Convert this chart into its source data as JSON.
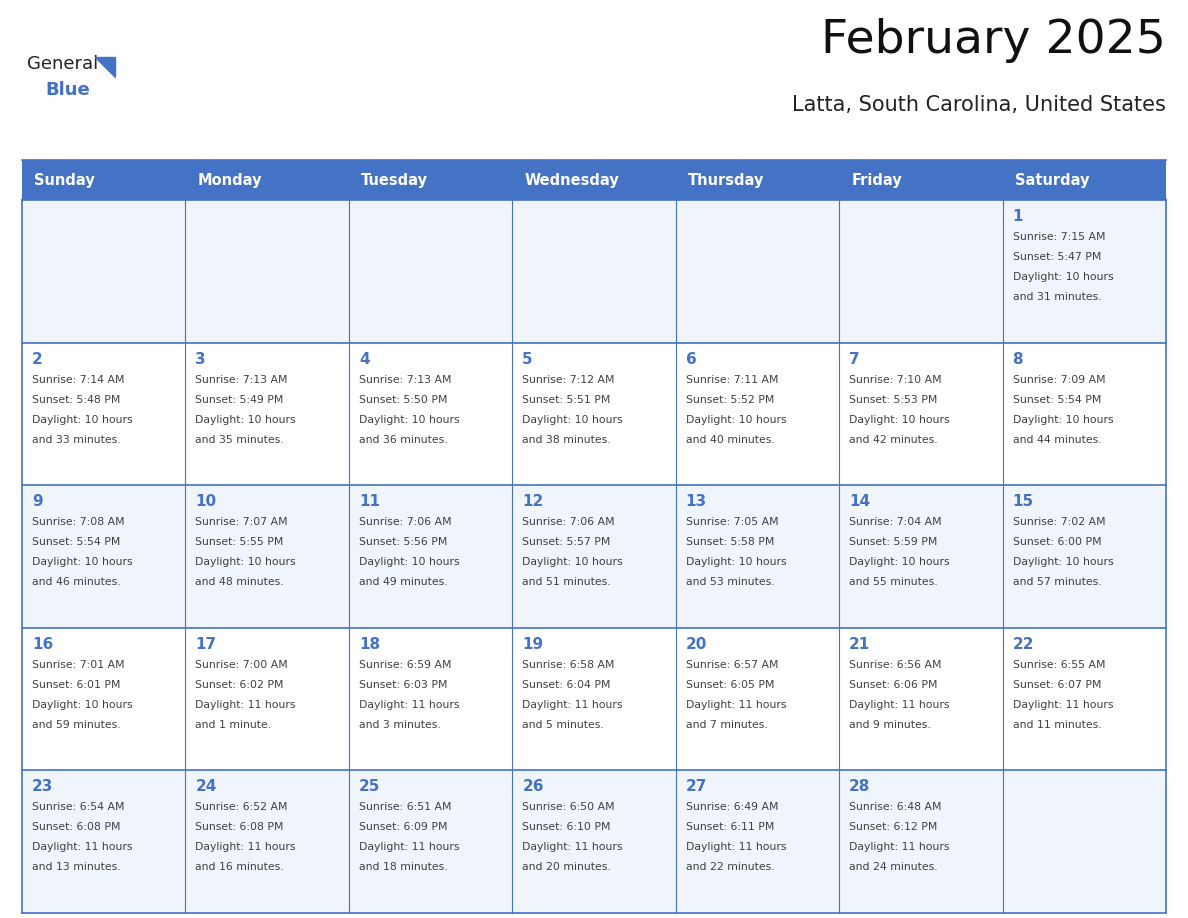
{
  "title": "February 2025",
  "subtitle": "Latta, South Carolina, United States",
  "header_bg_color": "#4472C4",
  "header_text_color": "#FFFFFF",
  "cell_bg_color_odd": "#F0F4FB",
  "cell_bg_color_even": "#FFFFFF",
  "cell_border_color": "#4472C4",
  "day_number_color": "#4472C4",
  "text_color": "#404040",
  "days_of_week": [
    "Sunday",
    "Monday",
    "Tuesday",
    "Wednesday",
    "Thursday",
    "Friday",
    "Saturday"
  ],
  "logo_text1": "General",
  "logo_text2": "Blue",
  "logo_color1": "#222222",
  "logo_color2": "#4472C4",
  "calendar_data": [
    [
      {
        "day": null,
        "sunrise": null,
        "sunset": null,
        "daylight": null
      },
      {
        "day": null,
        "sunrise": null,
        "sunset": null,
        "daylight": null
      },
      {
        "day": null,
        "sunrise": null,
        "sunset": null,
        "daylight": null
      },
      {
        "day": null,
        "sunrise": null,
        "sunset": null,
        "daylight": null
      },
      {
        "day": null,
        "sunrise": null,
        "sunset": null,
        "daylight": null
      },
      {
        "day": null,
        "sunrise": null,
        "sunset": null,
        "daylight": null
      },
      {
        "day": 1,
        "sunrise": "7:15 AM",
        "sunset": "5:47 PM",
        "daylight": "10 hours\nand 31 minutes."
      }
    ],
    [
      {
        "day": 2,
        "sunrise": "7:14 AM",
        "sunset": "5:48 PM",
        "daylight": "10 hours\nand 33 minutes."
      },
      {
        "day": 3,
        "sunrise": "7:13 AM",
        "sunset": "5:49 PM",
        "daylight": "10 hours\nand 35 minutes."
      },
      {
        "day": 4,
        "sunrise": "7:13 AM",
        "sunset": "5:50 PM",
        "daylight": "10 hours\nand 36 minutes."
      },
      {
        "day": 5,
        "sunrise": "7:12 AM",
        "sunset": "5:51 PM",
        "daylight": "10 hours\nand 38 minutes."
      },
      {
        "day": 6,
        "sunrise": "7:11 AM",
        "sunset": "5:52 PM",
        "daylight": "10 hours\nand 40 minutes."
      },
      {
        "day": 7,
        "sunrise": "7:10 AM",
        "sunset": "5:53 PM",
        "daylight": "10 hours\nand 42 minutes."
      },
      {
        "day": 8,
        "sunrise": "7:09 AM",
        "sunset": "5:54 PM",
        "daylight": "10 hours\nand 44 minutes."
      }
    ],
    [
      {
        "day": 9,
        "sunrise": "7:08 AM",
        "sunset": "5:54 PM",
        "daylight": "10 hours\nand 46 minutes."
      },
      {
        "day": 10,
        "sunrise": "7:07 AM",
        "sunset": "5:55 PM",
        "daylight": "10 hours\nand 48 minutes."
      },
      {
        "day": 11,
        "sunrise": "7:06 AM",
        "sunset": "5:56 PM",
        "daylight": "10 hours\nand 49 minutes."
      },
      {
        "day": 12,
        "sunrise": "7:06 AM",
        "sunset": "5:57 PM",
        "daylight": "10 hours\nand 51 minutes."
      },
      {
        "day": 13,
        "sunrise": "7:05 AM",
        "sunset": "5:58 PM",
        "daylight": "10 hours\nand 53 minutes."
      },
      {
        "day": 14,
        "sunrise": "7:04 AM",
        "sunset": "5:59 PM",
        "daylight": "10 hours\nand 55 minutes."
      },
      {
        "day": 15,
        "sunrise": "7:02 AM",
        "sunset": "6:00 PM",
        "daylight": "10 hours\nand 57 minutes."
      }
    ],
    [
      {
        "day": 16,
        "sunrise": "7:01 AM",
        "sunset": "6:01 PM",
        "daylight": "10 hours\nand 59 minutes."
      },
      {
        "day": 17,
        "sunrise": "7:00 AM",
        "sunset": "6:02 PM",
        "daylight": "11 hours\nand 1 minute."
      },
      {
        "day": 18,
        "sunrise": "6:59 AM",
        "sunset": "6:03 PM",
        "daylight": "11 hours\nand 3 minutes."
      },
      {
        "day": 19,
        "sunrise": "6:58 AM",
        "sunset": "6:04 PM",
        "daylight": "11 hours\nand 5 minutes."
      },
      {
        "day": 20,
        "sunrise": "6:57 AM",
        "sunset": "6:05 PM",
        "daylight": "11 hours\nand 7 minutes."
      },
      {
        "day": 21,
        "sunrise": "6:56 AM",
        "sunset": "6:06 PM",
        "daylight": "11 hours\nand 9 minutes."
      },
      {
        "day": 22,
        "sunrise": "6:55 AM",
        "sunset": "6:07 PM",
        "daylight": "11 hours\nand 11 minutes."
      }
    ],
    [
      {
        "day": 23,
        "sunrise": "6:54 AM",
        "sunset": "6:08 PM",
        "daylight": "11 hours\nand 13 minutes."
      },
      {
        "day": 24,
        "sunrise": "6:52 AM",
        "sunset": "6:08 PM",
        "daylight": "11 hours\nand 16 minutes."
      },
      {
        "day": 25,
        "sunrise": "6:51 AM",
        "sunset": "6:09 PM",
        "daylight": "11 hours\nand 18 minutes."
      },
      {
        "day": 26,
        "sunrise": "6:50 AM",
        "sunset": "6:10 PM",
        "daylight": "11 hours\nand 20 minutes."
      },
      {
        "day": 27,
        "sunrise": "6:49 AM",
        "sunset": "6:11 PM",
        "daylight": "11 hours\nand 22 minutes."
      },
      {
        "day": 28,
        "sunrise": "6:48 AM",
        "sunset": "6:12 PM",
        "daylight": "11 hours\nand 24 minutes."
      },
      {
        "day": null,
        "sunrise": null,
        "sunset": null,
        "daylight": null
      }
    ]
  ]
}
